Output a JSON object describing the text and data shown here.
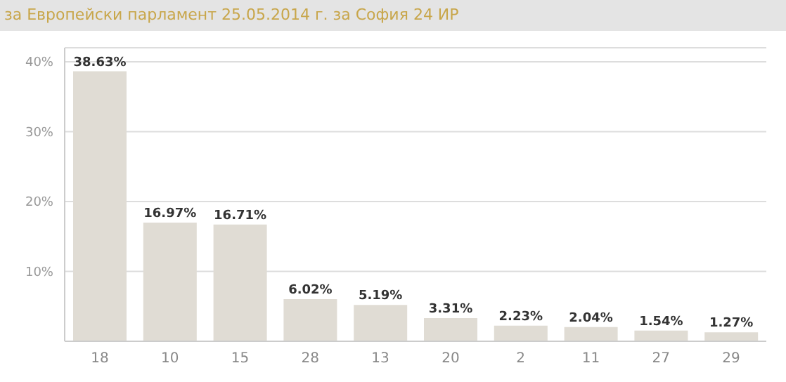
{
  "chart_data": {
    "type": "bar",
    "title": "за Европейски парламент 25.05.2014 г. за София 24 ИР",
    "categories": [
      "18",
      "10",
      "15",
      "28",
      "13",
      "20",
      "2",
      "11",
      "27",
      "29"
    ],
    "values": [
      38.63,
      16.97,
      16.71,
      6.02,
      5.19,
      3.31,
      2.23,
      2.04,
      1.54,
      1.27
    ],
    "value_labels": [
      "38.63%",
      "16.97%",
      "16.71%",
      "6.02%",
      "5.19%",
      "3.31%",
      "2.23%",
      "2.04%",
      "1.54%",
      "1.27%"
    ],
    "color": "#e0dcd4",
    "ylim": [
      0,
      42
    ],
    "yticks": [
      {
        "value": 0,
        "label": null
      },
      {
        "value": 10,
        "label": "10%"
      },
      {
        "value": 20,
        "label": "20%"
      },
      {
        "value": 30,
        "label": "30%"
      },
      {
        "value": 40,
        "label": "40%"
      }
    ],
    "grid": "y"
  }
}
